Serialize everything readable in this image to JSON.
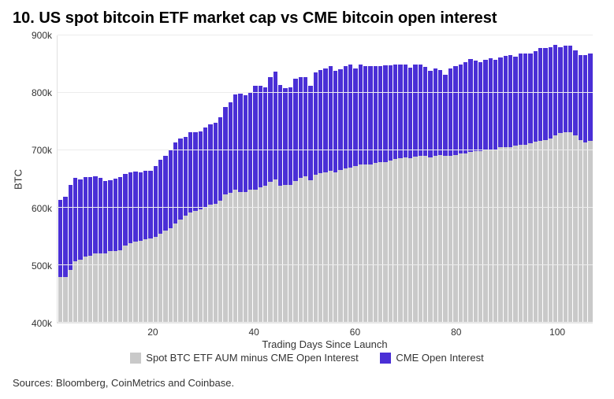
{
  "title": "10. US spot bitcoin ETF market cap vs CME bitcoin open interest",
  "source": "Sources: Bloomberg, CoinMetrics and Coinbase.",
  "chart": {
    "type": "stacked-bar",
    "ylabel": "BTC",
    "xlabel": "Trading Days Since Launch",
    "ylim": [
      400000,
      900000
    ],
    "yticks": [
      400000,
      500000,
      600000,
      700000,
      800000,
      900000
    ],
    "ytick_labels": [
      "400k",
      "500k",
      "600k",
      "700k",
      "800k",
      "900k"
    ],
    "xticks": [
      20,
      40,
      60,
      80,
      100
    ],
    "xtick_labels": [
      "20",
      "40",
      "60",
      "80",
      "100"
    ],
    "n_points": 107,
    "background_color": "#ffffff",
    "grid_color": "#ececec",
    "label_fontsize": 13,
    "tick_fontsize": 12,
    "series": [
      {
        "name": "Spot BTC ETF AUM minus CME Open Interest",
        "color": "#c9c9c9"
      },
      {
        "name": "CME Open Interest",
        "color": "#4a2fd6"
      }
    ],
    "data": {
      "spot": [
        479,
        479,
        492,
        507,
        509,
        515,
        517,
        520,
        520,
        521,
        524,
        525,
        526,
        534,
        539,
        541,
        542,
        545,
        546,
        549,
        555,
        560,
        565,
        572,
        580,
        586,
        592,
        594,
        597,
        602,
        605,
        607,
        612,
        623,
        626,
        632,
        628,
        628,
        632,
        632,
        635,
        638,
        645,
        649,
        638,
        640,
        640,
        646,
        652,
        655,
        648,
        658,
        660,
        662,
        665,
        662,
        666,
        668,
        670,
        672,
        675,
        675,
        676,
        678,
        680,
        680,
        682,
        685,
        686,
        688,
        686,
        689,
        690,
        690,
        688,
        690,
        692,
        690,
        690,
        692,
        694,
        694,
        697,
        698,
        698,
        700,
        702,
        702,
        705,
        706,
        706,
        708,
        710,
        710,
        713,
        715,
        716,
        718,
        720,
        726,
        730,
        732,
        732,
        726,
        718,
        714,
        716
      ],
      "cme": [
        135,
        140,
        148,
        145,
        140,
        138,
        136,
        135,
        132,
        126,
        124,
        126,
        128,
        125,
        123,
        122,
        120,
        119,
        118,
        123,
        128,
        130,
        135,
        142,
        140,
        138,
        140,
        138,
        136,
        138,
        140,
        141,
        145,
        152,
        158,
        165,
        170,
        168,
        170,
        180,
        178,
        172,
        182,
        188,
        176,
        168,
        170,
        178,
        176,
        172,
        165,
        178,
        180,
        180,
        182,
        176,
        175,
        178,
        180,
        170,
        175,
        172,
        170,
        168,
        166,
        168,
        166,
        165,
        164,
        162,
        158,
        160,
        160,
        155,
        150,
        152,
        148,
        142,
        152,
        155,
        156,
        160,
        162,
        158,
        156,
        158,
        158,
        155,
        156,
        158,
        160,
        155,
        158,
        158,
        156,
        158,
        162,
        160,
        160,
        158,
        150,
        150,
        150,
        148,
        148,
        152,
        152
      ]
    }
  }
}
